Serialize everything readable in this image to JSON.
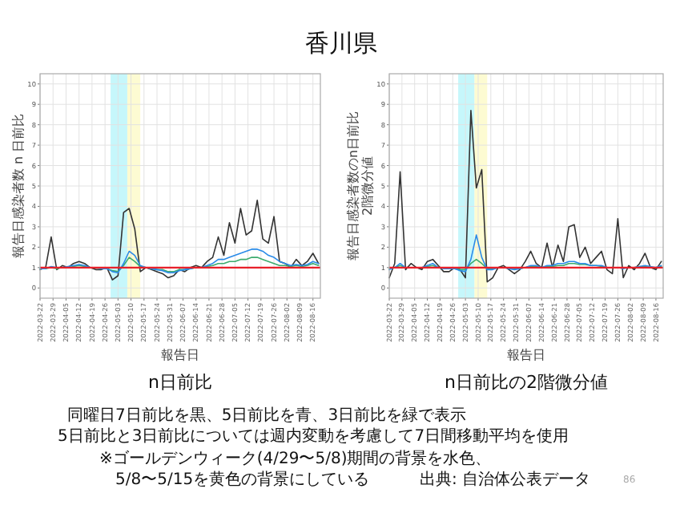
{
  "chart_data": [
    {
      "type": "line",
      "title": "n日前比",
      "xlabel": "報告日",
      "ylabel": "報告日感染者数 n 日前比",
      "x": [
        "2022-03-22",
        "2022-03-25",
        "2022-03-28",
        "2022-03-31",
        "2022-04-03",
        "2022-04-06",
        "2022-04-09",
        "2022-04-12",
        "2022-04-15",
        "2022-04-18",
        "2022-04-21",
        "2022-04-24",
        "2022-04-27",
        "2022-04-30",
        "2022-05-03",
        "2022-05-06",
        "2022-05-09",
        "2022-05-12",
        "2022-05-15",
        "2022-05-18",
        "2022-05-21",
        "2022-05-24",
        "2022-05-27",
        "2022-05-30",
        "2022-06-02",
        "2022-06-05",
        "2022-06-08",
        "2022-06-11",
        "2022-06-14",
        "2022-06-17",
        "2022-06-20",
        "2022-06-23",
        "2022-06-26",
        "2022-06-29",
        "2022-07-02",
        "2022-07-05",
        "2022-07-08",
        "2022-07-11",
        "2022-07-14",
        "2022-07-17",
        "2022-07-20",
        "2022-07-23",
        "2022-07-26",
        "2022-07-29",
        "2022-08-01",
        "2022-08-04",
        "2022-08-07",
        "2022-08-10",
        "2022-08-13",
        "2022-08-16",
        "2022-08-19"
      ],
      "series": [
        {
          "color": "#333333",
          "values": [
            0.9,
            1.0,
            2.5,
            0.9,
            1.1,
            1.0,
            1.2,
            1.3,
            1.2,
            1.0,
            0.9,
            0.9,
            1.0,
            0.4,
            0.6,
            3.7,
            3.9,
            2.9,
            0.8,
            1.0,
            0.9,
            0.8,
            0.7,
            0.5,
            0.6,
            0.9,
            0.8,
            1.0,
            1.1,
            1.0,
            1.3,
            1.5,
            2.5,
            1.6,
            3.2,
            2.2,
            3.9,
            2.6,
            2.8,
            4.3,
            2.4,
            2.2,
            3.5,
            1.3,
            1.2,
            1.0,
            1.4,
            1.1,
            1.3,
            1.7,
            1.2
          ]
        },
        {
          "color": "#3cab6e",
          "values": [
            0.95,
            0.95,
            1.0,
            0.95,
            1.0,
            1.0,
            1.05,
            1.1,
            1.05,
            1.0,
            1.0,
            0.95,
            0.95,
            0.85,
            0.8,
            1.1,
            1.5,
            1.3,
            1.05,
            1.0,
            0.95,
            0.9,
            0.9,
            0.8,
            0.8,
            0.9,
            0.9,
            0.95,
            1.0,
            1.0,
            1.05,
            1.1,
            1.2,
            1.2,
            1.3,
            1.3,
            1.4,
            1.4,
            1.5,
            1.5,
            1.4,
            1.3,
            1.2,
            1.1,
            1.1,
            1.05,
            1.1,
            1.05,
            1.1,
            1.2,
            1.1
          ]
        },
        {
          "color": "#2a8be8",
          "values": [
            0.95,
            0.95,
            1.05,
            1.0,
            1.0,
            1.05,
            1.1,
            1.15,
            1.1,
            1.0,
            1.0,
            0.95,
            0.95,
            0.8,
            0.75,
            1.2,
            1.8,
            1.6,
            1.1,
            1.0,
            0.95,
            0.9,
            0.85,
            0.75,
            0.75,
            0.85,
            0.9,
            0.95,
            1.0,
            1.0,
            1.1,
            1.2,
            1.4,
            1.4,
            1.5,
            1.6,
            1.7,
            1.8,
            1.9,
            1.9,
            1.8,
            1.6,
            1.5,
            1.3,
            1.2,
            1.1,
            1.15,
            1.1,
            1.15,
            1.3,
            1.2
          ]
        }
      ],
      "xlim": [
        "2022-03-22",
        "2022-08-20"
      ],
      "xticks": [
        "2022-03-22",
        "2022-03-29",
        "2022-04-05",
        "2022-04-12",
        "2022-04-19",
        "2022-04-26",
        "2022-05-03",
        "2022-05-10",
        "2022-05-17",
        "2022-05-24",
        "2022-05-31",
        "2022-06-07",
        "2022-06-14",
        "2022-06-21",
        "2022-06-28",
        "2022-07-05",
        "2022-07-12",
        "2022-07-19",
        "2022-07-26",
        "2022-08-02",
        "2022-08-09",
        "2022-08-16"
      ],
      "ylim": [
        -0.5,
        10.5
      ],
      "yticks": [
        0,
        1,
        2,
        3,
        4,
        5,
        6,
        7,
        8,
        9,
        10
      ],
      "grid": true,
      "line_style": "solid",
      "marker": "none",
      "ref_lines": [
        {
          "axis": "y",
          "value": 1,
          "color": "#e8202a"
        }
      ],
      "bands": [
        {
          "axis": "x",
          "from": "2022-04-29",
          "to": "2022-05-08",
          "color": "#c6f7fb"
        },
        {
          "axis": "x",
          "from": "2022-05-08",
          "to": "2022-05-15",
          "color": "#fdfbd2"
        }
      ]
    },
    {
      "type": "line",
      "title": "n日前比の2階微分値",
      "xlabel": "報告日",
      "ylabel": "報告日感染者数のn日前比\n2階微分値",
      "x": [
        "2022-03-22",
        "2022-03-25",
        "2022-03-28",
        "2022-03-31",
        "2022-04-03",
        "2022-04-06",
        "2022-04-09",
        "2022-04-12",
        "2022-04-15",
        "2022-04-18",
        "2022-04-21",
        "2022-04-24",
        "2022-04-27",
        "2022-04-30",
        "2022-05-03",
        "2022-05-06",
        "2022-05-09",
        "2022-05-12",
        "2022-05-15",
        "2022-05-18",
        "2022-05-21",
        "2022-05-24",
        "2022-05-27",
        "2022-05-30",
        "2022-06-02",
        "2022-06-05",
        "2022-06-08",
        "2022-06-11",
        "2022-06-14",
        "2022-06-17",
        "2022-06-20",
        "2022-06-23",
        "2022-06-26",
        "2022-06-29",
        "2022-07-02",
        "2022-07-05",
        "2022-07-08",
        "2022-07-11",
        "2022-07-14",
        "2022-07-17",
        "2022-07-20",
        "2022-07-23",
        "2022-07-26",
        "2022-07-29",
        "2022-08-01",
        "2022-08-04",
        "2022-08-07",
        "2022-08-10",
        "2022-08-13",
        "2022-08-16",
        "2022-08-19"
      ],
      "series": [
        {
          "color": "#333333",
          "values": [
            0.5,
            1.2,
            5.7,
            0.9,
            1.2,
            1.0,
            0.9,
            1.3,
            1.4,
            1.1,
            0.8,
            0.8,
            1.0,
            0.9,
            0.5,
            8.7,
            4.9,
            5.8,
            0.3,
            0.5,
            1.0,
            1.1,
            0.9,
            0.7,
            0.9,
            1.3,
            1.8,
            1.2,
            1.0,
            2.2,
            1.0,
            2.1,
            1.3,
            3.0,
            3.1,
            1.5,
            2.0,
            1.2,
            1.5,
            1.8,
            0.9,
            0.7,
            3.4,
            0.5,
            1.1,
            0.9,
            1.2,
            1.7,
            1.0,
            0.9,
            1.3
          ]
        },
        {
          "color": "#3cab6e",
          "values": [
            0.95,
            1.0,
            1.1,
            1.0,
            1.0,
            1.0,
            1.0,
            1.05,
            1.1,
            1.0,
            1.0,
            0.95,
            0.95,
            0.9,
            0.9,
            1.2,
            1.4,
            1.2,
            0.95,
            0.95,
            1.0,
            1.0,
            1.0,
            0.95,
            0.95,
            1.0,
            1.05,
            1.05,
            1.0,
            1.05,
            1.05,
            1.1,
            1.1,
            1.2,
            1.2,
            1.15,
            1.15,
            1.1,
            1.1,
            1.05,
            1.0,
            1.0,
            1.0,
            1.0,
            1.0,
            1.0,
            1.05,
            1.05,
            1.0,
            1.0,
            1.05
          ]
        },
        {
          "color": "#2a8be8",
          "values": [
            0.9,
            1.0,
            1.2,
            1.0,
            1.0,
            1.0,
            1.0,
            1.1,
            1.2,
            1.0,
            0.95,
            0.95,
            0.95,
            0.85,
            0.8,
            1.4,
            2.6,
            1.5,
            0.9,
            0.9,
            1.0,
            1.0,
            0.95,
            0.9,
            0.95,
            1.0,
            1.1,
            1.1,
            1.0,
            1.1,
            1.1,
            1.2,
            1.2,
            1.3,
            1.3,
            1.2,
            1.2,
            1.1,
            1.1,
            1.1,
            1.0,
            1.0,
            1.0,
            0.95,
            1.0,
            1.0,
            1.05,
            1.1,
            1.05,
            1.0,
            1.1
          ]
        }
      ],
      "xlim": [
        "2022-03-22",
        "2022-08-20"
      ],
      "xticks": [
        "2022-03-22",
        "2022-03-29",
        "2022-04-05",
        "2022-04-12",
        "2022-04-19",
        "2022-04-26",
        "2022-05-03",
        "2022-05-10",
        "2022-05-17",
        "2022-05-24",
        "2022-05-31",
        "2022-06-07",
        "2022-06-14",
        "2022-06-21",
        "2022-06-28",
        "2022-07-05",
        "2022-07-12",
        "2022-07-19",
        "2022-07-26",
        "2022-08-02",
        "2022-08-09",
        "2022-08-16"
      ],
      "ylim": [
        -0.5,
        10.5
      ],
      "yticks": [
        0,
        1,
        2,
        3,
        4,
        5,
        6,
        7,
        8,
        9,
        10
      ],
      "grid": true,
      "line_style": "solid",
      "marker": "none",
      "ref_lines": [
        {
          "axis": "y",
          "value": 1,
          "color": "#e8202a"
        }
      ],
      "bands": [
        {
          "axis": "x",
          "from": "2022-04-29",
          "to": "2022-05-08",
          "color": "#c6f7fb"
        },
        {
          "axis": "x",
          "from": "2022-05-08",
          "to": "2022-05-15",
          "color": "#fdfbd2"
        }
      ]
    },
    {
      "type": "other",
      "title": "香川県",
      "annotations": [
        "同曜日7日前比を黒、5日前比を青、3日前比を緑で表示",
        "5日前比と3日前比については週内変動を考慮して7日間移動平均を使用",
        "※ゴールデンウィーク(4/29〜5/8)期間の背景を水色、",
        "5/8〜5/15を黄色の背景にしている",
        "出典: 自治体公表データ",
        "86"
      ]
    }
  ]
}
